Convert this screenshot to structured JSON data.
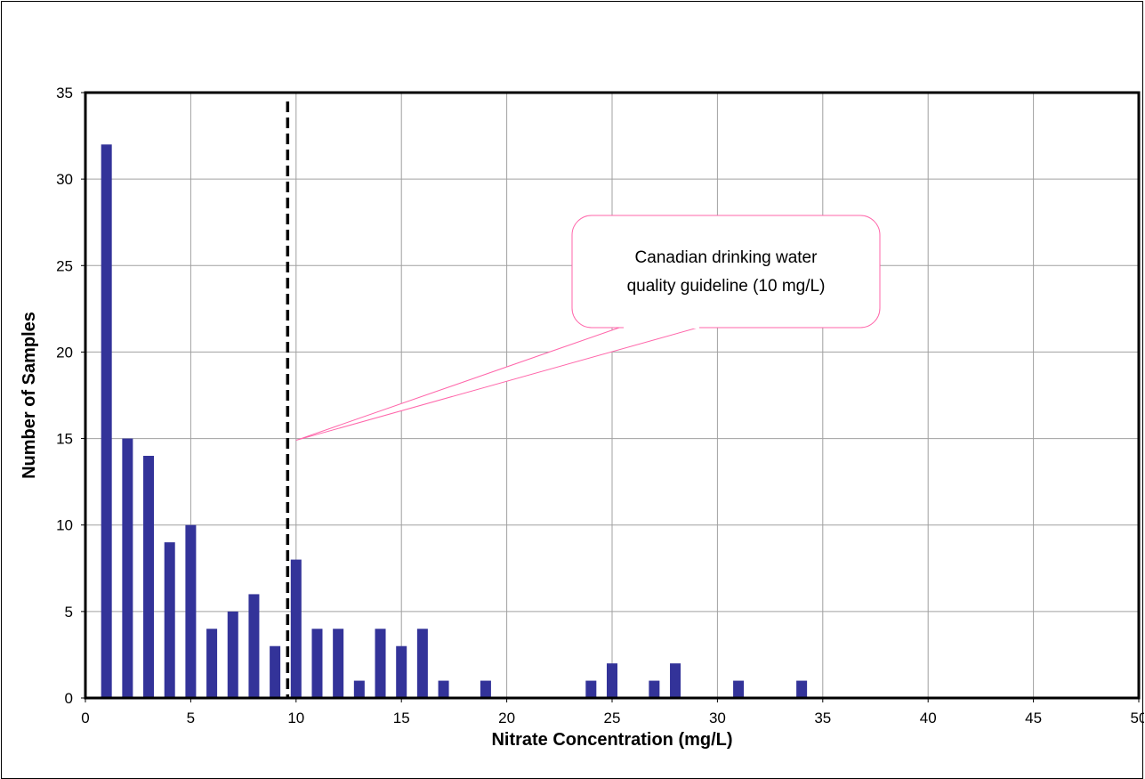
{
  "chart_data": {
    "type": "bar",
    "xlabel": "Nitrate Concentration (mg/L)",
    "ylabel": "Number of Samples",
    "xlim": [
      0,
      50
    ],
    "ylim": [
      0,
      35
    ],
    "x_ticks": [
      0,
      5,
      10,
      15,
      20,
      25,
      30,
      35,
      40,
      45,
      50
    ],
    "y_ticks": [
      0,
      5,
      10,
      15,
      20,
      25,
      30,
      35
    ],
    "grid": true,
    "bar_color": "#333399",
    "series": [
      {
        "x": [
          1,
          2,
          3,
          4,
          5,
          6,
          7,
          8,
          9,
          10,
          11,
          12,
          13,
          14,
          15,
          16,
          17,
          19,
          24,
          25,
          27,
          28,
          31,
          34
        ],
        "values": [
          32,
          15,
          14,
          9,
          10,
          4,
          5,
          6,
          3,
          8,
          4,
          4,
          1,
          4,
          3,
          4,
          1,
          1,
          1,
          2,
          1,
          2,
          1,
          1
        ]
      }
    ],
    "reference_line": {
      "x": 9.6,
      "style": "dashed",
      "color": "#000000"
    },
    "annotation": {
      "text_lines": [
        "Canadian drinking water",
        "quality guideline (10 mg/L)"
      ],
      "target_x": 10,
      "target_y": 15,
      "border_color": "#ff66aa"
    }
  }
}
